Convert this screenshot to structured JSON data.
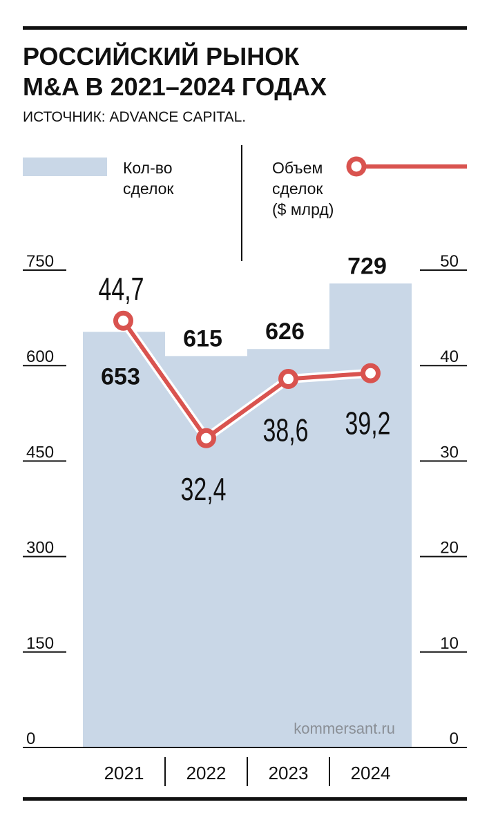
{
  "title_line1": "РОССИЙСКИЙ РЫНОК",
  "title_line2": "M&A В 2021–2024 ГОДАХ",
  "source": "ИСТОЧНИК: ADVANCE CAPITAL.",
  "watermark": "kommersant.ru",
  "colors": {
    "bar": "#c9d7e7",
    "line": "#d9534f",
    "text": "#111111",
    "rule": "#111111"
  },
  "chart_data": {
    "type": "bar+line",
    "categories": [
      "2021",
      "2022",
      "2023",
      "2024"
    ],
    "bars": {
      "legend": [
        "Кол-во",
        "сделок"
      ],
      "values": [
        653,
        615,
        626,
        729
      ],
      "labels": [
        "653",
        "615",
        "626",
        "729"
      ],
      "axis": "left",
      "ylim": [
        0,
        750
      ],
      "ticks": [
        "0",
        "150",
        "300",
        "450",
        "600",
        "750"
      ]
    },
    "line": {
      "legend": [
        "Объем",
        "сделок",
        "($ млрд)"
      ],
      "values": [
        44.7,
        32.4,
        38.6,
        39.2
      ],
      "labels": [
        "44,7",
        "32,4",
        "38,6",
        "39,2"
      ],
      "axis": "right",
      "ylim": [
        0,
        50
      ],
      "ticks": [
        "0",
        "10",
        "20",
        "30",
        "40",
        "50"
      ]
    }
  }
}
